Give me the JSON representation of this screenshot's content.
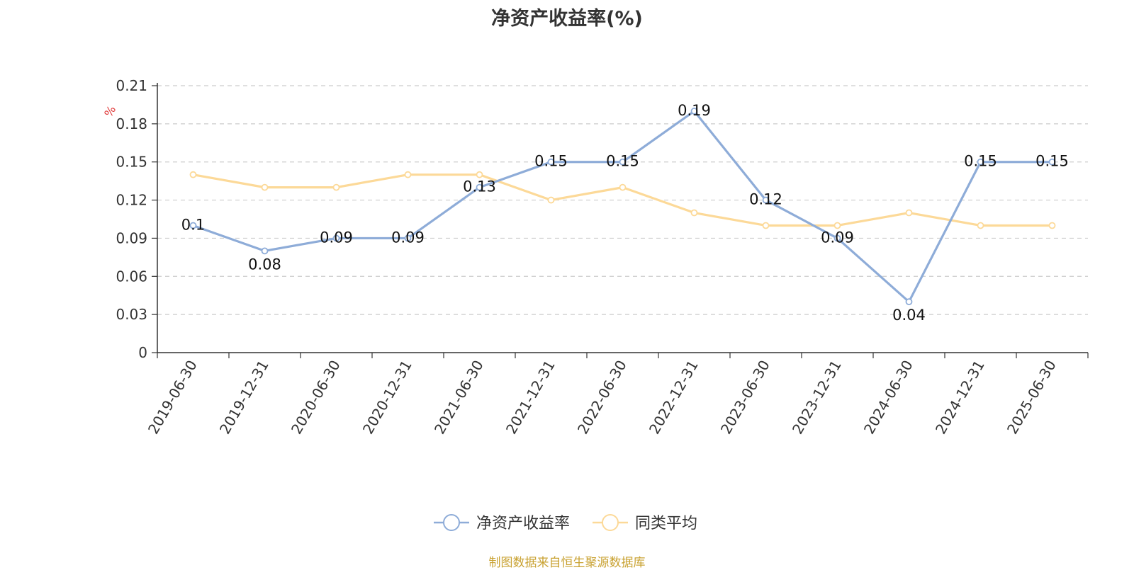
{
  "chart_data": {
    "type": "line",
    "title": "净资产收益率(%)",
    "ylabel": "%",
    "xlabel": "",
    "categories": [
      "2019-06-30",
      "2019-12-31",
      "2020-06-30",
      "2020-12-31",
      "2021-06-30",
      "2021-12-31",
      "2022-06-30",
      "2022-12-31",
      "2023-06-30",
      "2023-12-31",
      "2024-06-30",
      "2024-12-31",
      "2025-06-30"
    ],
    "y_ticks": [
      "0",
      "0.03",
      "0.06",
      "0.09",
      "0.12",
      "0.15",
      "0.18",
      "0.21"
    ],
    "ylim": [
      0,
      0.21
    ],
    "grid": true,
    "legend_position": "bottom-center",
    "series": [
      {
        "name": "净资产收益率",
        "color": "#8eacd8",
        "values": [
          0.1,
          0.08,
          0.09,
          0.09,
          0.13,
          0.15,
          0.15,
          0.19,
          0.12,
          0.09,
          0.04,
          0.15,
          0.15
        ],
        "data_labels": [
          "0.1",
          "0.08",
          "0.09",
          "0.09",
          "0.13",
          "0.15",
          "0.15",
          "0.19",
          "0.12",
          "0.09",
          "0.04",
          "0.15",
          "0.15"
        ]
      },
      {
        "name": "同类平均",
        "color": "#fcd998",
        "values": [
          0.14,
          0.13,
          0.13,
          0.14,
          0.14,
          0.12,
          0.13,
          0.11,
          0.1,
          0.1,
          0.11,
          0.1,
          0.1
        ]
      }
    ]
  },
  "source": "制图数据来自恒生聚源数据库"
}
